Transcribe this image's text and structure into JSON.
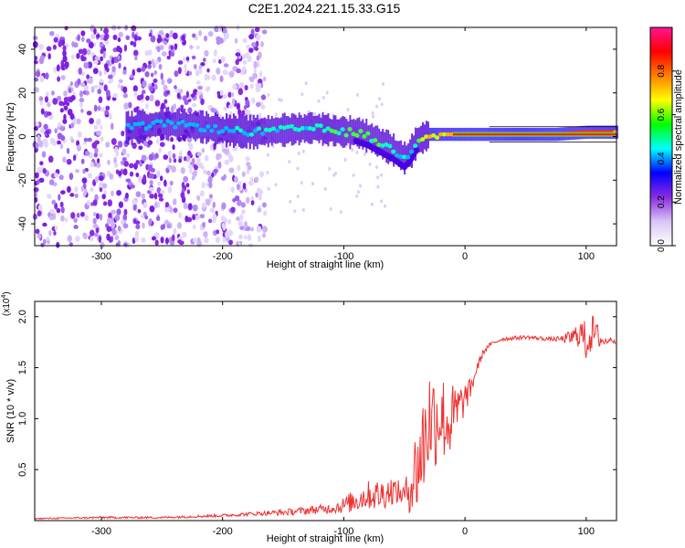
{
  "chart_data": [
    {
      "type": "heatmap",
      "title": "C2E1.2024.221.15.33.G15",
      "xlabel": "Height of straight line (km)",
      "ylabel": "Frequency (Hz)",
      "xlim": [
        -355,
        125
      ],
      "ylim": [
        -50,
        50
      ],
      "xticks": [
        -300,
        -200,
        -100,
        0,
        100
      ],
      "yticks": [
        -40,
        -20,
        0,
        20,
        40
      ],
      "colorbar": {
        "label": "Normalized spectral amplitude",
        "range": [
          0,
          1
        ],
        "ticks": [
          "0.0",
          "0.2",
          "0.4",
          "0.6",
          "0.8"
        ],
        "colors": [
          "#ffffff",
          "#d8c6f6",
          "#8a2be2",
          "#0000ff",
          "#00ffff",
          "#00ff00",
          "#ffff00",
          "#ff8000",
          "#ff0000",
          "#ff1493"
        ]
      },
      "ridge": {
        "x": [
          -275,
          -250,
          -225,
          -200,
          -175,
          -150,
          -125,
          -100,
          -90,
          -80,
          -70,
          -60,
          -50,
          -45,
          -40,
          -30,
          -20,
          -10,
          0,
          25,
          50,
          75,
          100,
          125
        ],
        "y": [
          4,
          6,
          5,
          3,
          2,
          3,
          4,
          2,
          2,
          0,
          -3,
          -6,
          -10,
          -7,
          -2,
          1,
          1,
          1,
          1,
          1,
          1,
          1,
          2,
          2
        ],
        "amplitude": [
          0.35,
          0.4,
          0.35,
          0.4,
          0.45,
          0.5,
          0.5,
          0.55,
          0.6,
          0.6,
          0.55,
          0.5,
          0.45,
          0.45,
          0.6,
          0.7,
          0.75,
          0.8,
          0.85,
          0.9,
          0.9,
          0.9,
          0.95,
          0.9
        ]
      }
    },
    {
      "type": "line",
      "xlabel": "Height of straight line (km)",
      "ylabel": "SNR (10 * v/v)",
      "ylabel_multiplier": "(x10",
      "ylabel_exponent": "4",
      "xlim": [
        -355,
        125
      ],
      "ylim": [
        0,
        2.15
      ],
      "xticks": [
        -300,
        -200,
        -100,
        0,
        100
      ],
      "yticks": [
        0.5,
        1.0,
        1.5,
        2.0
      ],
      "ytick_labels": [
        "0.5",
        "1.0",
        "1.5",
        "2.0"
      ],
      "color": "#ee3333",
      "series": [
        {
          "name": "SNR",
          "x": [
            -355,
            -300,
            -250,
            -200,
            -170,
            -150,
            -130,
            -110,
            -100,
            -90,
            -80,
            -70,
            -60,
            -50,
            -45,
            -40,
            -35,
            -30,
            -25,
            -20,
            -15,
            -10,
            -5,
            0,
            5,
            10,
            15,
            20,
            25,
            30,
            40,
            50,
            60,
            70,
            80,
            90,
            95,
            100,
            105,
            110,
            115,
            120,
            125
          ],
          "y": [
            0.02,
            0.03,
            0.03,
            0.05,
            0.07,
            0.08,
            0.1,
            0.12,
            0.15,
            0.2,
            0.25,
            0.25,
            0.3,
            0.25,
            0.35,
            0.5,
            0.7,
            1.0,
            1.0,
            1.05,
            0.95,
            1.0,
            1.1,
            1.2,
            1.3,
            1.5,
            1.65,
            1.72,
            1.75,
            1.78,
            1.79,
            1.8,
            1.79,
            1.78,
            1.78,
            1.8,
            1.85,
            1.75,
            1.85,
            1.8,
            1.75,
            1.78,
            1.75
          ],
          "noise": [
            0.005,
            0.01,
            0.01,
            0.015,
            0.02,
            0.03,
            0.04,
            0.05,
            0.08,
            0.12,
            0.14,
            0.16,
            0.14,
            0.1,
            0.3,
            0.45,
            0.55,
            0.55,
            0.5,
            0.45,
            0.4,
            0.35,
            0.25,
            0.15,
            0.1,
            0.05,
            0.03,
            0.02,
            0.02,
            0.02,
            0.02,
            0.02,
            0.02,
            0.02,
            0.03,
            0.1,
            0.15,
            0.2,
            0.18,
            0.12,
            0.05,
            0.02,
            0.02
          ]
        }
      ]
    }
  ]
}
